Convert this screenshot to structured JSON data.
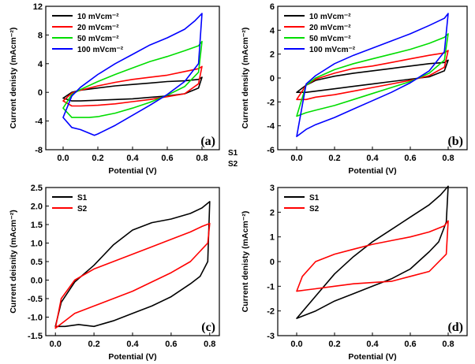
{
  "figure": {
    "stray_labels": [
      "S1",
      "S2"
    ]
  },
  "chart_data": [
    {
      "panel": "(a)",
      "type": "line",
      "xlabel": "Potential (V)",
      "ylabel": "Current denisty (mAcm⁻²)",
      "xlim": [
        -0.1,
        0.9
      ],
      "ylim": [
        -8,
        12
      ],
      "xticks": [
        "0.0",
        "0.2",
        "0.4",
        "0.6",
        "0.8"
      ],
      "xtick_values": [
        0,
        0.2,
        0.4,
        0.6,
        0.8
      ],
      "yticks": [
        "-8",
        "-4",
        "0",
        "4",
        "8",
        "12"
      ],
      "ytick_values": [
        -8,
        -4,
        0,
        4,
        8,
        12
      ],
      "legend_position": "top-left",
      "series": [
        {
          "name": "10 mVcm⁻²",
          "color": "#000000",
          "x": [
            0,
            0.05,
            0.1,
            0.2,
            0.3,
            0.4,
            0.5,
            0.6,
            0.7,
            0.78,
            0.8,
            0.78,
            0.7,
            0.6,
            0.5,
            0.4,
            0.3,
            0.2,
            0.1,
            0.05,
            0
          ],
          "y": [
            -0.8,
            0.0,
            0.3,
            0.6,
            0.9,
            1.1,
            1.3,
            1.5,
            1.6,
            1.8,
            2.1,
            0.6,
            -0.2,
            -0.5,
            -0.7,
            -0.9,
            -1.0,
            -1.1,
            -1.2,
            -1.2,
            -0.8
          ]
        },
        {
          "name": "20 mVcm⁻²",
          "color": "#ff0000",
          "x": [
            0,
            0.05,
            0.1,
            0.2,
            0.3,
            0.4,
            0.5,
            0.6,
            0.7,
            0.78,
            0.8,
            0.78,
            0.7,
            0.6,
            0.5,
            0.4,
            0.3,
            0.2,
            0.1,
            0.05,
            0
          ],
          "y": [
            -1.2,
            -0.1,
            0.3,
            0.9,
            1.4,
            1.8,
            2.1,
            2.4,
            2.9,
            3.3,
            3.6,
            1.2,
            -0.2,
            -0.6,
            -1.0,
            -1.3,
            -1.6,
            -1.8,
            -1.9,
            -1.9,
            -1.2
          ]
        },
        {
          "name": "50 mVcm⁻²",
          "color": "#00dd00",
          "x": [
            0,
            0.05,
            0.1,
            0.2,
            0.3,
            0.4,
            0.5,
            0.6,
            0.7,
            0.78,
            0.8,
            0.78,
            0.7,
            0.6,
            0.5,
            0.4,
            0.3,
            0.2,
            0.15,
            0.1,
            0.05,
            0
          ],
          "y": [
            -2.2,
            -0.3,
            0.4,
            1.5,
            2.5,
            3.4,
            4.3,
            5.0,
            5.8,
            6.5,
            7.1,
            2.8,
            0.8,
            -0.4,
            -1.4,
            -2.2,
            -2.9,
            -3.4,
            -3.5,
            -3.5,
            -3.5,
            -2.2
          ]
        },
        {
          "name": "100 mVcm⁻²",
          "color": "#0000ff",
          "x": [
            0,
            0.05,
            0.1,
            0.2,
            0.3,
            0.4,
            0.5,
            0.6,
            0.7,
            0.76,
            0.8,
            0.78,
            0.7,
            0.6,
            0.5,
            0.4,
            0.3,
            0.2,
            0.18,
            0.1,
            0.05,
            0
          ],
          "y": [
            -3.5,
            -0.5,
            0.7,
            2.5,
            4.0,
            5.3,
            6.6,
            7.6,
            8.8,
            10.0,
            11.0,
            4.0,
            1.5,
            -0.3,
            -1.8,
            -3.2,
            -4.6,
            -5.8,
            -6.0,
            -5.2,
            -4.9,
            -3.5
          ]
        }
      ]
    },
    {
      "panel": "(b)",
      "type": "line",
      "xlabel": "Potential (V)",
      "ylabel": "Current density (mAcm⁻²)",
      "xlim": [
        -0.1,
        0.9
      ],
      "ylim": [
        -6,
        6
      ],
      "xticks": [
        "0.0",
        "0.2",
        "0.4",
        "0.6",
        "0.8"
      ],
      "xtick_values": [
        0,
        0.2,
        0.4,
        0.6,
        0.8
      ],
      "yticks": [
        "-6",
        "-4",
        "-2",
        "0",
        "2",
        "4",
        "6"
      ],
      "ytick_values": [
        -6,
        -4,
        -2,
        0,
        2,
        4,
        6
      ],
      "legend_position": "top-left",
      "series": [
        {
          "name": "10 mVcm⁻²",
          "color": "#000000",
          "x": [
            0,
            0.05,
            0.1,
            0.2,
            0.3,
            0.4,
            0.5,
            0.6,
            0.7,
            0.78,
            0.8,
            0.78,
            0.7,
            0.6,
            0.5,
            0.4,
            0.3,
            0.2,
            0.1,
            0.05,
            0
          ],
          "y": [
            -1.2,
            -0.6,
            -0.2,
            0.15,
            0.4,
            0.6,
            0.8,
            1.0,
            1.2,
            1.3,
            1.5,
            0.6,
            0.1,
            -0.1,
            -0.3,
            -0.5,
            -0.7,
            -0.9,
            -1.1,
            -1.2,
            -1.2
          ]
        },
        {
          "name": "20 mVcm⁻²",
          "color": "#ff0000",
          "x": [
            0,
            0.05,
            0.1,
            0.2,
            0.3,
            0.4,
            0.5,
            0.6,
            0.7,
            0.78,
            0.8,
            0.78,
            0.7,
            0.6,
            0.5,
            0.4,
            0.3,
            0.2,
            0.1,
            0.05,
            0
          ],
          "y": [
            -1.8,
            -0.6,
            -0.1,
            0.4,
            0.8,
            1.0,
            1.3,
            1.6,
            1.9,
            2.1,
            2.3,
            0.9,
            0.2,
            -0.2,
            -0.5,
            -0.8,
            -1.1,
            -1.4,
            -1.6,
            -1.8,
            -1.8
          ]
        },
        {
          "name": "50 mVcm⁻²",
          "color": "#00dd00",
          "x": [
            0,
            0.05,
            0.1,
            0.2,
            0.3,
            0.4,
            0.5,
            0.6,
            0.7,
            0.78,
            0.8,
            0.78,
            0.7,
            0.6,
            0.5,
            0.4,
            0.3,
            0.2,
            0.1,
            0.05,
            0
          ],
          "y": [
            -3.2,
            -0.6,
            0.0,
            0.7,
            1.2,
            1.6,
            2.0,
            2.4,
            2.9,
            3.4,
            3.7,
            1.5,
            0.4,
            -0.3,
            -0.8,
            -1.3,
            -1.8,
            -2.3,
            -2.7,
            -2.9,
            -3.2
          ]
        },
        {
          "name": "100 mVcm⁻²",
          "color": "#0000ff",
          "x": [
            0,
            0.05,
            0.1,
            0.2,
            0.3,
            0.4,
            0.5,
            0.6,
            0.7,
            0.78,
            0.8,
            0.78,
            0.7,
            0.6,
            0.5,
            0.4,
            0.3,
            0.2,
            0.1,
            0.05,
            0
          ],
          "y": [
            -4.9,
            -0.5,
            0.2,
            1.2,
            1.9,
            2.5,
            3.1,
            3.7,
            4.4,
            5.0,
            5.4,
            2.2,
            0.6,
            -0.4,
            -1.2,
            -1.9,
            -2.6,
            -3.3,
            -3.9,
            -4.3,
            -4.9
          ]
        }
      ]
    },
    {
      "panel": "(c)",
      "type": "line",
      "xlabel": "Potential (V)",
      "ylabel": "Current deisnity (mAcm⁻²)",
      "xlim": [
        -0.05,
        0.85
      ],
      "ylim": [
        -1.5,
        2.5
      ],
      "xticks": [
        "0.0",
        "0.2",
        "0.4",
        "0.6",
        "0.8"
      ],
      "xtick_values": [
        0,
        0.2,
        0.4,
        0.6,
        0.8
      ],
      "yticks": [
        "-1.5",
        "-1.0",
        "-0.5",
        "0.0",
        "0.5",
        "1.0",
        "1.5",
        "2.0",
        "2.5"
      ],
      "ytick_values": [
        -1.5,
        -1.0,
        -0.5,
        0,
        0.5,
        1.0,
        1.5,
        2.0,
        2.5
      ],
      "legend_position": "top-left",
      "series": [
        {
          "name": "S1",
          "color": "#000000",
          "x": [
            0,
            0.03,
            0.1,
            0.2,
            0.3,
            0.4,
            0.5,
            0.6,
            0.7,
            0.76,
            0.8,
            0.79,
            0.75,
            0.7,
            0.6,
            0.5,
            0.4,
            0.3,
            0.2,
            0.12,
            0.05,
            0
          ],
          "y": [
            -1.25,
            -0.6,
            -0.05,
            0.4,
            0.95,
            1.35,
            1.55,
            1.65,
            1.8,
            1.95,
            2.12,
            0.5,
            0.1,
            -0.1,
            -0.45,
            -0.7,
            -0.9,
            -1.1,
            -1.25,
            -1.2,
            -1.25,
            -1.25
          ]
        },
        {
          "name": "S2",
          "color": "#ff0000",
          "x": [
            0,
            0.03,
            0.1,
            0.2,
            0.3,
            0.4,
            0.5,
            0.6,
            0.7,
            0.76,
            0.8,
            0.79,
            0.7,
            0.6,
            0.5,
            0.4,
            0.3,
            0.2,
            0.1,
            0.05,
            0
          ],
          "y": [
            -1.3,
            -0.5,
            0.0,
            0.3,
            0.5,
            0.7,
            0.9,
            1.1,
            1.3,
            1.45,
            1.53,
            1.0,
            0.5,
            0.2,
            -0.05,
            -0.3,
            -0.5,
            -0.7,
            -0.9,
            -1.1,
            -1.3
          ]
        }
      ]
    },
    {
      "panel": "(d)",
      "type": "line",
      "xlabel": "Potential (V)",
      "ylabel": "Current denisty (mAcm⁻²)",
      "xlim": [
        -0.1,
        0.9
      ],
      "ylim": [
        -3,
        3
      ],
      "xticks": [
        "0.0",
        "0.2",
        "0.4",
        "0.6",
        "0.8"
      ],
      "xtick_values": [
        0,
        0.2,
        0.4,
        0.6,
        0.8
      ],
      "yticks": [
        "-3",
        "-2",
        "-1",
        "0",
        "1",
        "2",
        "3"
      ],
      "ytick_values": [
        -3,
        -2,
        -1,
        0,
        1,
        2,
        3
      ],
      "legend_position": "top-left",
      "series": [
        {
          "name": "S1",
          "color": "#000000",
          "x": [
            0,
            0.1,
            0.2,
            0.3,
            0.4,
            0.5,
            0.6,
            0.7,
            0.76,
            0.8,
            0.79,
            0.75,
            0.7,
            0.6,
            0.5,
            0.4,
            0.3,
            0.2,
            0.1,
            0
          ],
          "y": [
            -2.3,
            -1.4,
            -0.5,
            0.2,
            0.8,
            1.3,
            1.8,
            2.3,
            2.7,
            3.05,
            1.6,
            0.8,
            0.4,
            -0.3,
            -0.7,
            -1.0,
            -1.3,
            -1.6,
            -2.0,
            -2.3
          ]
        },
        {
          "name": "S2",
          "color": "#ff0000",
          "x": [
            0,
            0.03,
            0.1,
            0.2,
            0.3,
            0.4,
            0.5,
            0.6,
            0.7,
            0.78,
            0.8,
            0.79,
            0.7,
            0.6,
            0.5,
            0.4,
            0.3,
            0.2,
            0.1,
            0.05,
            0
          ],
          "y": [
            -1.2,
            -0.6,
            0.0,
            0.3,
            0.5,
            0.7,
            0.85,
            1.0,
            1.2,
            1.45,
            1.65,
            0.3,
            -0.4,
            -0.6,
            -0.8,
            -0.85,
            -0.9,
            -1.0,
            -1.1,
            -1.15,
            -1.2
          ]
        }
      ]
    }
  ]
}
